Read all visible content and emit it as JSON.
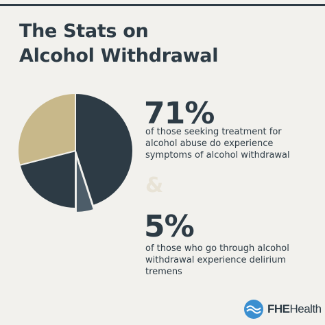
{
  "title": {
    "line1": "The Stats on",
    "line2": "Alcohol Withdrawal"
  },
  "stat1": {
    "value": "71%",
    "lines": [
      "of those seeking treatment for",
      "alcohol abuse do experience",
      "symptoms of alcohol withdrawal"
    ]
  },
  "ampersand": "&",
  "stat2": {
    "value": "5%",
    "lines": [
      "of those who go through alcohol",
      "withdrawal experience delirium",
      "tremens"
    ]
  },
  "logo": {
    "name_bold": "FHE",
    "name_rest": "Health"
  },
  "colors": {
    "background": "#f2f1ed",
    "dark_slate": "#2d3b45",
    "slate_gray": "#4d5d69",
    "tan": "#c8b88a",
    "logo_blue": "#3b8fd0"
  },
  "chart_data": {
    "type": "pie",
    "slices": [
      {
        "label": "",
        "value": 45,
        "color": "#2d3b45"
      },
      {
        "label": "",
        "value": 5,
        "color": "#4d5d69"
      },
      {
        "label": "",
        "value": 21,
        "color": "#2d3b45"
      },
      {
        "label": "",
        "value": 29,
        "color": "#c8b88a"
      }
    ]
  }
}
